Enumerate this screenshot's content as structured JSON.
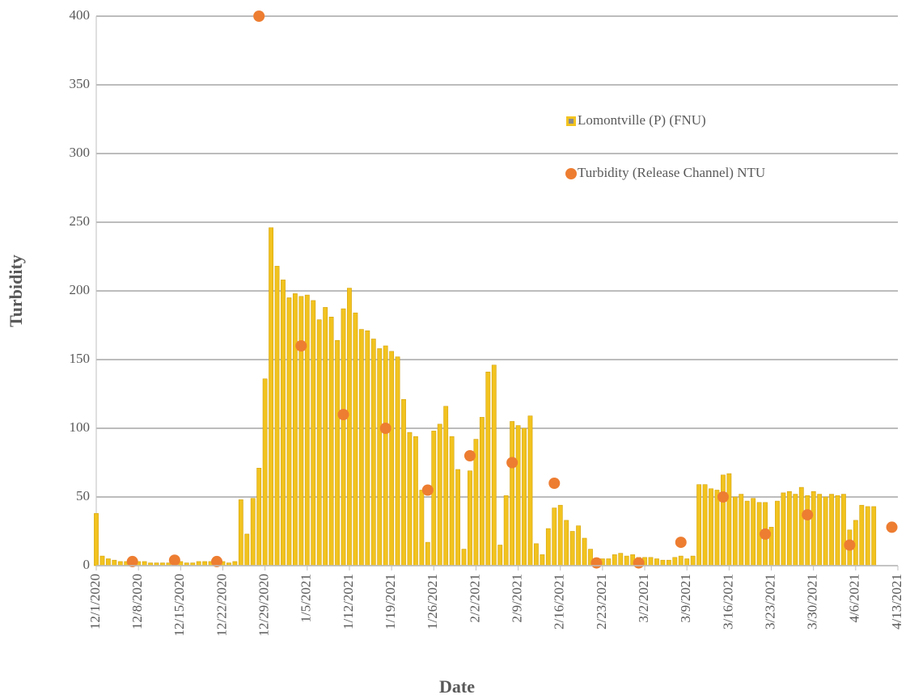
{
  "chart_data": {
    "type": "bar",
    "x_label": "Date",
    "y_label": "Turbidity",
    "x": [
      "12/1/2020",
      "12/2/2020",
      "12/3/2020",
      "12/4/2020",
      "12/5/2020",
      "12/6/2020",
      "12/7/2020",
      "12/8/2020",
      "12/9/2020",
      "12/10/2020",
      "12/11/2020",
      "12/12/2020",
      "12/13/2020",
      "12/14/2020",
      "12/15/2020",
      "12/16/2020",
      "12/17/2020",
      "12/18/2020",
      "12/19/2020",
      "12/20/2020",
      "12/21/2020",
      "12/22/2020",
      "12/23/2020",
      "12/24/2020",
      "12/25/2020",
      "12/26/2020",
      "12/27/2020",
      "12/28/2020",
      "12/29/2020",
      "12/30/2020",
      "12/31/2020",
      "1/1/2021",
      "1/2/2021",
      "1/3/2021",
      "1/4/2021",
      "1/5/2021",
      "1/6/2021",
      "1/7/2021",
      "1/8/2021",
      "1/9/2021",
      "1/10/2021",
      "1/11/2021",
      "1/12/2021",
      "1/13/2021",
      "1/14/2021",
      "1/15/2021",
      "1/16/2021",
      "1/17/2021",
      "1/18/2021",
      "1/19/2021",
      "1/20/2021",
      "1/21/2021",
      "1/22/2021",
      "1/23/2021",
      "1/24/2021",
      "1/25/2021",
      "1/26/2021",
      "1/27/2021",
      "1/28/2021",
      "1/29/2021",
      "1/30/2021",
      "1/31/2021",
      "2/1/2021",
      "2/2/2021",
      "2/3/2021",
      "2/4/2021",
      "2/5/2021",
      "2/6/2021",
      "2/7/2021",
      "2/8/2021",
      "2/9/2021",
      "2/10/2021",
      "2/11/2021",
      "2/12/2021",
      "2/13/2021",
      "2/14/2021",
      "2/15/2021",
      "2/16/2021",
      "2/17/2021",
      "2/18/2021",
      "2/19/2021",
      "2/20/2021",
      "2/21/2021",
      "2/22/2021",
      "2/23/2021",
      "2/24/2021",
      "2/25/2021",
      "2/26/2021",
      "2/27/2021",
      "2/28/2021",
      "3/1/2021",
      "3/2/2021",
      "3/3/2021",
      "3/4/2021",
      "3/5/2021",
      "3/6/2021",
      "3/7/2021",
      "3/8/2021",
      "3/9/2021",
      "3/10/2021",
      "3/11/2021",
      "3/12/2021",
      "3/13/2021",
      "3/14/2021",
      "3/15/2021",
      "3/16/2021",
      "3/17/2021",
      "3/18/2021",
      "3/19/2021",
      "3/20/2021",
      "3/21/2021",
      "3/22/2021",
      "3/23/2021",
      "3/24/2021",
      "3/25/2021",
      "3/26/2021",
      "3/27/2021",
      "3/28/2021",
      "3/29/2021",
      "3/30/2021",
      "3/31/2021",
      "4/1/2021",
      "4/2/2021",
      "4/3/2021",
      "4/4/2021",
      "4/5/2021",
      "4/6/2021",
      "4/7/2021",
      "4/8/2021",
      "4/9/2021"
    ],
    "series": [
      {
        "name": "Lomontville (P) (FNU)",
        "color": "#f2c31f",
        "values": [
          38,
          7,
          5,
          4,
          3,
          3,
          3,
          3,
          3,
          2,
          2,
          2,
          2,
          2,
          3,
          2,
          2,
          3,
          3,
          3,
          3,
          3,
          2,
          3,
          48,
          23,
          49,
          71,
          136,
          246,
          218,
          208,
          195,
          198,
          196,
          197,
          193,
          179,
          188,
          181,
          164,
          187,
          202,
          184,
          172,
          171,
          165,
          158,
          160,
          156,
          152,
          121,
          97,
          94,
          55,
          17,
          98,
          103,
          116,
          94,
          70,
          12,
          69,
          92,
          108,
          141,
          146,
          15,
          51,
          105,
          102,
          100,
          109,
          16,
          8,
          27,
          42,
          44,
          33,
          25,
          29,
          20,
          12,
          5,
          5,
          5,
          8,
          9,
          7,
          8,
          6,
          6,
          6,
          5,
          4,
          4,
          6,
          7,
          5,
          7,
          59,
          59,
          56,
          55,
          66,
          67,
          50,
          52,
          47,
          49,
          46,
          46,
          28,
          47,
          53,
          54,
          52,
          57,
          51,
          54,
          52,
          50,
          52,
          51,
          52,
          26,
          33,
          44,
          43,
          43
        ]
      },
      {
        "name": "Turbidity (Release Channel) NTU",
        "type": "scatter",
        "color": "#ed7d31",
        "x": [
          "12/7/2020",
          "12/14/2020",
          "12/21/2020",
          "12/28/2020",
          "1/4/2021",
          "1/11/2021",
          "1/18/2021",
          "1/25/2021",
          "2/1/2021",
          "2/8/2021",
          "2/15/2021",
          "2/22/2021",
          "3/1/2021",
          "3/8/2021",
          "3/15/2021",
          "3/22/2021",
          "3/29/2021",
          "4/5/2021",
          "4/12/2021"
        ],
        "values": [
          3,
          4,
          3,
          400,
          160,
          110,
          100,
          55,
          80,
          75,
          60,
          2,
          2,
          17,
          50,
          23,
          37,
          15,
          28
        ]
      }
    ],
    "xlim": [
      "12/1/2020",
      "4/13/2021"
    ],
    "xticks": [
      "12/1/2020",
      "12/8/2020",
      "12/15/2020",
      "12/22/2020",
      "12/29/2020",
      "1/5/2021",
      "1/12/2021",
      "1/19/2021",
      "1/26/2021",
      "2/2/2021",
      "2/9/2021",
      "2/16/2021",
      "2/23/2021",
      "3/2/2021",
      "3/9/2021",
      "3/16/2021",
      "3/23/2021",
      "3/30/2021",
      "4/6/2021",
      "4/13/2021"
    ],
    "ylim": [
      0,
      400
    ],
    "yticks": [
      0,
      50,
      100,
      150,
      200,
      250,
      300,
      350,
      400
    ],
    "grid": true
  }
}
